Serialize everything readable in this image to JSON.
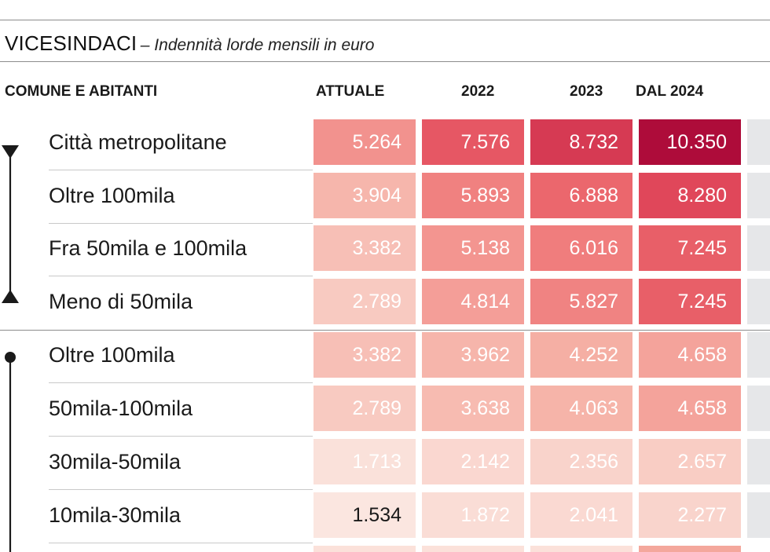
{
  "title": "VICESINDACI",
  "subtitle": "– Indennità lorde mensili in euro",
  "chart_data": {
    "type": "table",
    "columns": [
      "COMUNE E ABITANTI",
      "ATTUALE",
      "2022",
      "2023",
      "DAL 2024"
    ],
    "rows": [
      {
        "label": "Città metropolitane",
        "values": [
          5264,
          7576,
          8732,
          10350
        ],
        "display": [
          "5.264",
          "7.576",
          "8.732",
          "10.350"
        ]
      },
      {
        "label": "Oltre 100mila",
        "values": [
          3904,
          5893,
          6888,
          8280
        ],
        "display": [
          "3.904",
          "5.893",
          "6.888",
          "8.280"
        ]
      },
      {
        "label": "Fra 50mila e 100mila",
        "values": [
          3382,
          5138,
          6016,
          7245
        ],
        "display": [
          "3.382",
          "5.138",
          "6.016",
          "7.245"
        ]
      },
      {
        "label": "Meno di 50mila",
        "values": [
          2789,
          4814,
          5827,
          7245
        ],
        "display": [
          "2.789",
          "4.814",
          "5.827",
          "7.245"
        ]
      },
      {
        "label": "Oltre 100mila",
        "values": [
          3382,
          3962,
          4252,
          4658
        ],
        "display": [
          "3.382",
          "3.962",
          "4.252",
          "4.658"
        ]
      },
      {
        "label": "50mila-100mila",
        "values": [
          2789,
          3638,
          4063,
          4658
        ],
        "display": [
          "2.789",
          "3.638",
          "4.063",
          "4.658"
        ]
      },
      {
        "label": "30mila-50mila",
        "values": [
          1713,
          2142,
          2356,
          2657
        ],
        "display": [
          "1.713",
          "2.142",
          "2.356",
          "2.657"
        ]
      },
      {
        "label": "10mila-30mila",
        "values": [
          1534,
          1872,
          2041,
          2277
        ],
        "display": [
          "1.534",
          "1.872",
          "2.041",
          "2.277"
        ]
      }
    ],
    "color_scale": {
      "low": "#fbe5df",
      "high": "#ae0c3a"
    }
  }
}
